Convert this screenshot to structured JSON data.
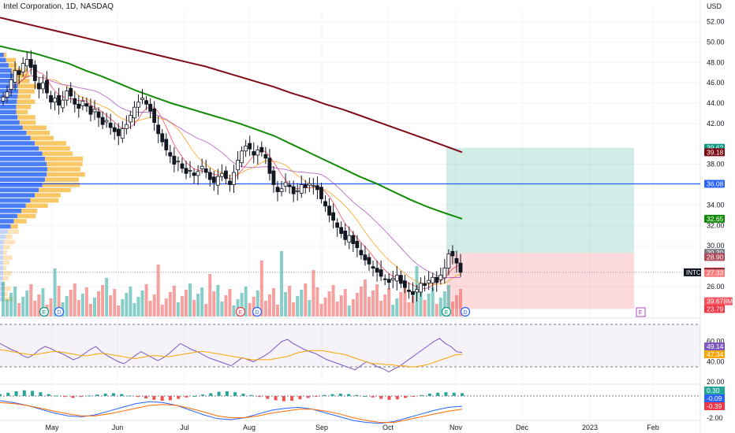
{
  "chart_data": {
    "type": "candlestick",
    "title": "Intel Corporation, 1D, NASDAQ",
    "currency": "USD",
    "symbol": "INTC",
    "price_axis": {
      "ticks": [
        "52.00",
        "50.00",
        "48.00",
        "46.00",
        "44.00",
        "42.00",
        "38.00",
        "36.00",
        "34.00",
        "32.00",
        "30.00",
        "26.00"
      ],
      "range": [
        22.9,
        53.2
      ]
    },
    "time_axis": {
      "labels": [
        "May",
        "Jun",
        "Jul",
        "Aug",
        "Sep",
        "Oct",
        "Nov",
        "Dec",
        "2023",
        "Feb"
      ]
    },
    "ohlc_series": {
      "name": "",
      "closes": [
        44.6,
        45.1,
        46.3,
        47.2,
        46.8,
        47.9,
        48.3,
        47.5,
        46.2,
        45.4,
        46.0,
        45.0,
        44.1,
        44.5,
        43.8,
        44.3,
        45.2,
        44.7,
        43.9,
        43.5,
        44.2,
        43.7,
        42.9,
        43.4,
        42.6,
        41.9,
        42.3,
        41.6,
        41.2,
        40.8,
        41.5,
        41.9,
        42.8,
        43.6,
        44.1,
        44.5,
        43.9,
        43.2,
        42.1,
        41.0,
        40.2,
        39.4,
        38.8,
        38.0,
        38.3,
        37.6,
        37.1,
        37.4,
        36.9,
        37.3,
        37.8,
        37.2,
        36.5,
        36.2,
        36.8,
        37.1,
        36.6,
        36.0,
        37.2,
        38.4,
        39.3,
        39.8,
        39.5,
        38.9,
        39.4,
        39.2,
        38.6,
        37.1,
        36.0,
        35.3,
        35.6,
        36.2,
        35.8,
        35.1,
        35.4,
        36.0,
        35.7,
        36.1,
        35.9,
        35.5,
        34.6,
        33.9,
        33.0,
        32.5,
        31.8,
        31.2,
        30.6,
        31.0,
        30.2,
        29.8,
        29.1,
        28.6,
        28.2,
        27.8,
        27.4,
        27.0,
        26.7,
        26.4,
        26.8,
        27.1,
        26.3,
        25.9,
        25.5,
        25.2,
        25.7,
        26.3,
        26.1,
        26.6,
        26.9,
        26.4,
        27.1,
        27.8,
        29.2,
        29.0,
        28.3,
        27.39
      ],
      "last": 27.39
    },
    "moving_averages": [
      {
        "name": "",
        "color": "#7f0a14",
        "values": [
          52.4,
          52.0,
          51.6,
          51.2,
          50.8,
          50.4,
          50.0,
          49.6,
          49.2,
          48.8,
          48.4,
          48.0,
          47.6,
          47.1,
          46.6,
          46.1,
          45.6,
          45.0,
          44.5,
          43.9,
          43.4,
          42.8,
          42.2,
          41.6,
          41.0,
          40.4,
          39.8,
          39.18
        ]
      },
      {
        "name": "",
        "color": "#138a07",
        "values": [
          49.6,
          49.2,
          48.9,
          48.4,
          47.9,
          47.2,
          46.6,
          45.9,
          45.2,
          44.6,
          44.0,
          43.5,
          43.0,
          42.5,
          42.0,
          41.4,
          40.8,
          40.0,
          39.2,
          38.4,
          37.6,
          36.8,
          36.1,
          35.3,
          34.5,
          33.8,
          33.2,
          32.65
        ]
      }
    ],
    "horizontal_line": {
      "value": 36.08,
      "color": "#2962ff"
    },
    "position_tool": {
      "entry": 29.3,
      "target": 39.62,
      "stop": 23.79
    },
    "price_labels": [
      {
        "text": "39.62",
        "bg": "#089981"
      },
      {
        "text": "39.18",
        "bg": "#7f0a14"
      },
      {
        "text": "36.08",
        "bg": "#2962ff"
      },
      {
        "text": "32.65",
        "bg": "#138a07"
      },
      {
        "text": "29.30",
        "bg": "#787b86"
      },
      {
        "text": "28.90",
        "bg": "#b04a5a"
      },
      {
        "text": "27.47",
        "bg": "#f23645"
      },
      {
        "text": "27.39",
        "bg": "#131722"
      },
      {
        "text": "27.33",
        "bg": "#ff7b7b"
      },
      {
        "text": "39.678M",
        "bg": "#f7525f"
      },
      {
        "text": "23.79",
        "bg": "#f23645"
      }
    ],
    "event_markers": [
      "E",
      "D",
      "E",
      "D",
      "E",
      "D",
      "E"
    ],
    "rsi": {
      "ticks": [
        "60.00",
        "40.00",
        "20.00"
      ],
      "labels": [
        {
          "text": "49.14",
          "bg": "#7e57c2"
        },
        {
          "text": "47.34",
          "bg": "#f7a600"
        }
      ],
      "values": [
        58,
        55,
        52,
        50,
        46,
        44,
        47,
        52,
        55,
        53,
        50,
        48,
        45,
        42,
        44,
        48,
        52,
        55,
        50,
        46,
        43,
        40,
        38,
        42,
        46,
        50,
        47,
        44,
        41,
        44,
        48,
        53,
        58,
        55,
        52,
        50,
        47,
        44,
        42,
        40,
        38,
        36,
        40,
        44,
        42,
        40,
        43,
        46,
        50,
        55,
        60,
        62,
        58,
        55,
        52,
        50,
        48,
        45,
        42,
        40,
        38,
        36,
        34,
        32,
        36,
        40,
        38,
        35,
        33,
        30,
        33,
        36,
        40,
        44,
        48,
        52,
        56,
        60,
        63,
        58,
        55,
        50,
        49.14
      ],
      "signal": [
        52,
        51,
        50,
        49,
        48,
        47,
        47,
        48,
        49,
        50,
        50,
        49,
        48,
        47,
        46,
        46,
        47,
        48,
        48,
        47,
        46,
        45,
        44,
        43,
        44,
        45,
        46,
        46,
        45,
        45,
        46,
        47,
        48,
        49,
        50,
        50,
        49,
        48,
        47,
        46,
        45,
        44,
        43,
        42,
        42,
        42,
        42,
        43,
        44,
        45,
        47,
        49,
        50,
        51,
        51,
        51,
        50,
        49,
        48,
        47,
        45,
        43,
        41,
        39,
        38,
        38,
        37,
        37,
        36,
        36,
        35,
        35,
        36,
        37,
        39,
        41,
        43,
        45,
        47,
        47.34
      ]
    },
    "macd": {
      "ticks": [
        "0.30",
        "-2.00"
      ],
      "labels": [
        {
          "text": "0.30",
          "bg": "#26a69a"
        },
        {
          "text": "-0.09",
          "bg": "#2962ff"
        },
        {
          "text": "-0.39",
          "bg": "#f23645"
        }
      ],
      "histogram": [
        0.2,
        0.35,
        0.5,
        0.6,
        0.55,
        0.4,
        0.2,
        0.05,
        -0.1,
        -0.2,
        -0.1,
        0.05,
        0.15,
        0.25,
        0.3,
        0.2,
        0.05,
        -0.1,
        -0.25,
        -0.4,
        -0.5,
        -0.45,
        -0.3,
        -0.15,
        0.0,
        0.15,
        0.3,
        0.45,
        0.5,
        0.4,
        0.25,
        0.1,
        -0.1,
        -0.3,
        -0.45,
        -0.55,
        -0.5,
        -0.35,
        -0.2,
        -0.05,
        0.1,
        0.2,
        0.25,
        0.2,
        0.1,
        0.0,
        -0.15,
        -0.3,
        -0.4,
        -0.35,
        -0.2,
        -0.05,
        0.1,
        0.25,
        0.35,
        0.4,
        0.35,
        0.3
      ],
      "macd_line": [
        0.5,
        0.3,
        0.0,
        -0.4,
        -0.8,
        -1.1,
        -1.2,
        -1.0,
        -0.6,
        -0.2,
        0.2,
        0.4,
        0.3,
        0.0,
        -0.5,
        -1.0,
        -1.4,
        -1.5,
        -1.3,
        -0.9,
        -0.5,
        -0.3,
        -0.2,
        -0.4,
        -0.8,
        -1.2,
        -1.6,
        -1.8,
        -1.9,
        -1.7,
        -1.3,
        -0.9,
        -0.5,
        -0.2,
        -0.09
      ],
      "signal_line": [
        0.3,
        0.2,
        0.0,
        -0.3,
        -0.6,
        -0.9,
        -1.1,
        -1.1,
        -0.9,
        -0.6,
        -0.3,
        0.0,
        0.1,
        0.0,
        -0.3,
        -0.7,
        -1.1,
        -1.3,
        -1.3,
        -1.1,
        -0.8,
        -0.6,
        -0.4,
        -0.4,
        -0.6,
        -0.9,
        -1.3,
        -1.6,
        -1.8,
        -1.8,
        -1.5,
        -1.2,
        -0.9,
        -0.6,
        -0.39
      ]
    },
    "volume_profile": true
  }
}
